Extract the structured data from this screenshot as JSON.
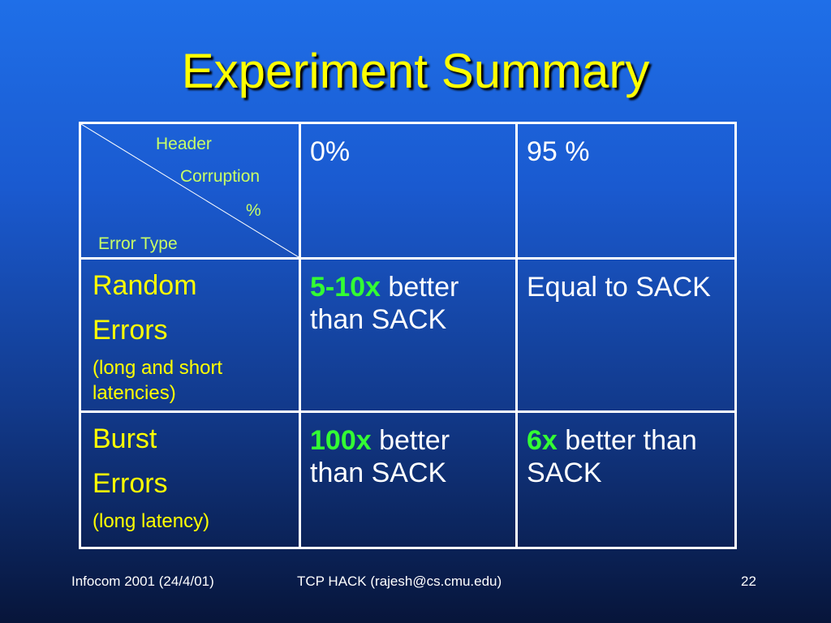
{
  "slide": {
    "title": "Experiment Summary"
  },
  "table": {
    "corner": {
      "header_line1": "Header",
      "header_line2": "Corruption",
      "header_line3": "%",
      "row_axis_label": "Error Type"
    },
    "columns": [
      "0%",
      "95 %"
    ],
    "rows": [
      {
        "label_line1": "Random",
        "label_line2": "Errors",
        "label_sub": "(long and short latencies)",
        "cells": [
          {
            "highlight": "5-10x",
            "text": " better than SACK"
          },
          {
            "highlight": "",
            "text": "Equal to SACK"
          }
        ]
      },
      {
        "label_line1": "Burst",
        "label_line2": "Errors",
        "label_sub": "(long latency)",
        "cells": [
          {
            "highlight": "100x",
            "text": " better than SACK"
          },
          {
            "highlight": "6x",
            "text": " better than SACK"
          }
        ]
      }
    ]
  },
  "footer": {
    "left": "Infocom 2001 (24/4/01)",
    "center": "TCP HACK (rajesh@cs.cmu.edu)",
    "page": "22"
  },
  "colors": {
    "title": "#ffff00",
    "row_label": "#ffff00",
    "corner_label": "#c8ff66",
    "highlight": "#33ff33",
    "cell_text": "#ffffff",
    "grid": "#ffffff"
  }
}
